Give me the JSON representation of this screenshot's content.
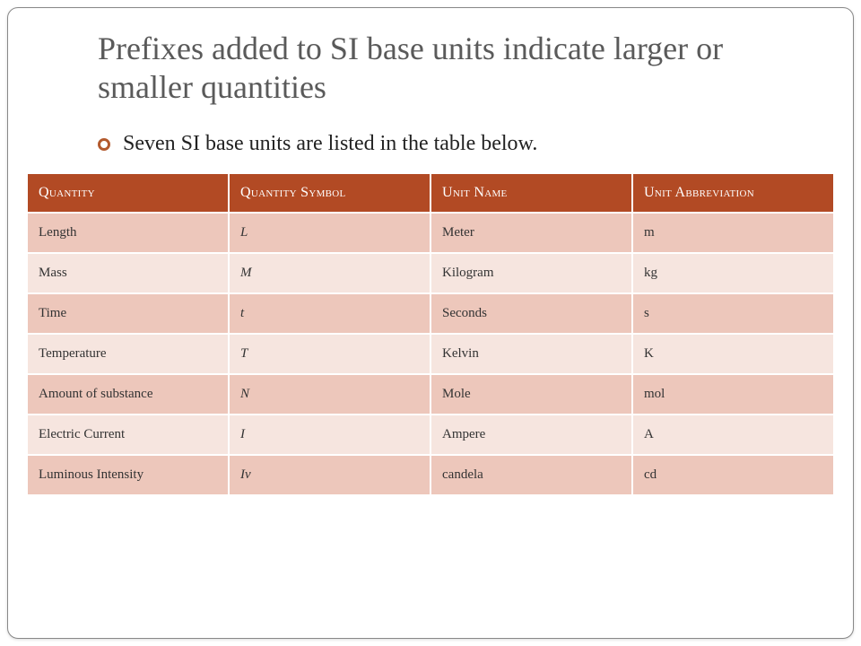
{
  "title": "Prefixes added to SI base units indicate larger or smaller quantities",
  "subtitle": "Seven SI base units are listed in the table below.",
  "table": {
    "type": "table",
    "header_bg": "#b24a24",
    "header_fg": "#ffffff",
    "row_odd_bg": "#edc7bb",
    "row_even_bg": "#f6e5df",
    "border_color": "#ffffff",
    "font_family": "Georgia",
    "header_fontsize": 16,
    "cell_fontsize": 15,
    "columns": [
      {
        "label": "Quantity",
        "italic": false
      },
      {
        "label": "Quantity Symbol",
        "italic": true
      },
      {
        "label": "Unit Name",
        "italic": false
      },
      {
        "label": "Unit Abbreviation",
        "italic": false
      }
    ],
    "rows": [
      [
        "Length",
        "L",
        "Meter",
        "m"
      ],
      [
        "Mass",
        "M",
        "Kilogram",
        "kg"
      ],
      [
        "Time",
        "t",
        "Seconds",
        "s"
      ],
      [
        "Temperature",
        "T",
        "Kelvin",
        "K"
      ],
      [
        "Amount of substance",
        "N",
        "Mole",
        "mol"
      ],
      [
        "Electric Current",
        "I",
        "Ampere",
        "A"
      ],
      [
        "Luminous Intensity",
        "Iv",
        "candela",
        "cd"
      ]
    ]
  },
  "colors": {
    "title_color": "#5a5a5a",
    "bullet_border": "#b35a2e",
    "text_color": "#222222",
    "slide_border": "#888888",
    "background": "#ffffff"
  }
}
